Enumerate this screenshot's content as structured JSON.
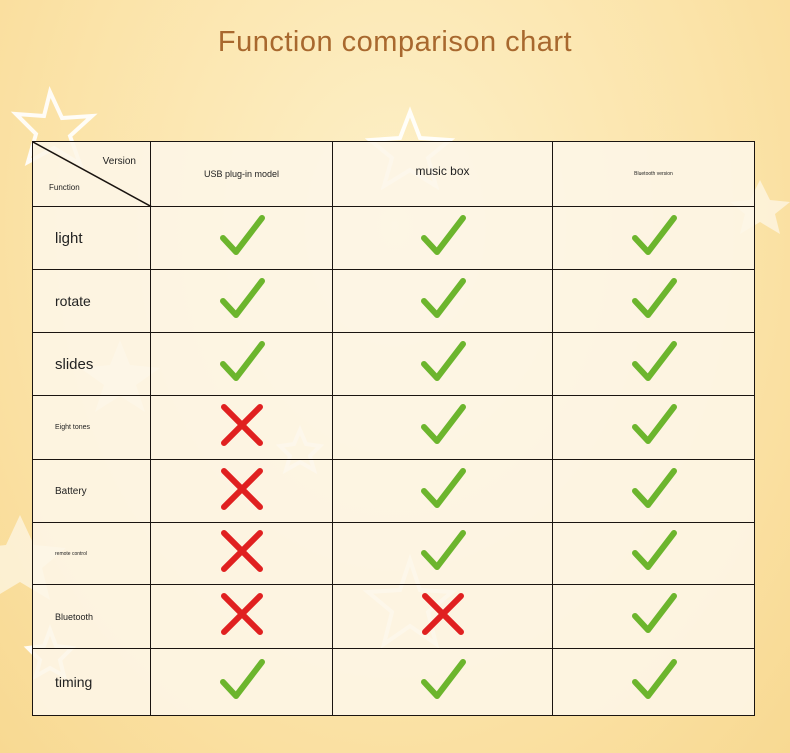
{
  "title": "Function comparison chart",
  "header": {
    "version_label": "Version",
    "function_label": "Function",
    "columns": [
      "USB plug-in model",
      "music box",
      "Bluetooth version"
    ]
  },
  "colors": {
    "check": "#6cb52d",
    "cross": "#e02020",
    "title": "#a8682e"
  },
  "rows": [
    {
      "function": "light",
      "values": [
        true,
        true,
        true
      ]
    },
    {
      "function": "rotate",
      "values": [
        true,
        true,
        true
      ]
    },
    {
      "function": "slides",
      "values": [
        true,
        true,
        true
      ]
    },
    {
      "function": "Eight tones",
      "values": [
        false,
        true,
        true
      ]
    },
    {
      "function": "Battery",
      "values": [
        false,
        true,
        true
      ]
    },
    {
      "function": "remote control",
      "values": [
        false,
        true,
        true
      ]
    },
    {
      "function": "Bluetooth",
      "values": [
        false,
        false,
        true
      ]
    },
    {
      "function": "timing",
      "values": [
        true,
        true,
        true
      ]
    }
  ]
}
